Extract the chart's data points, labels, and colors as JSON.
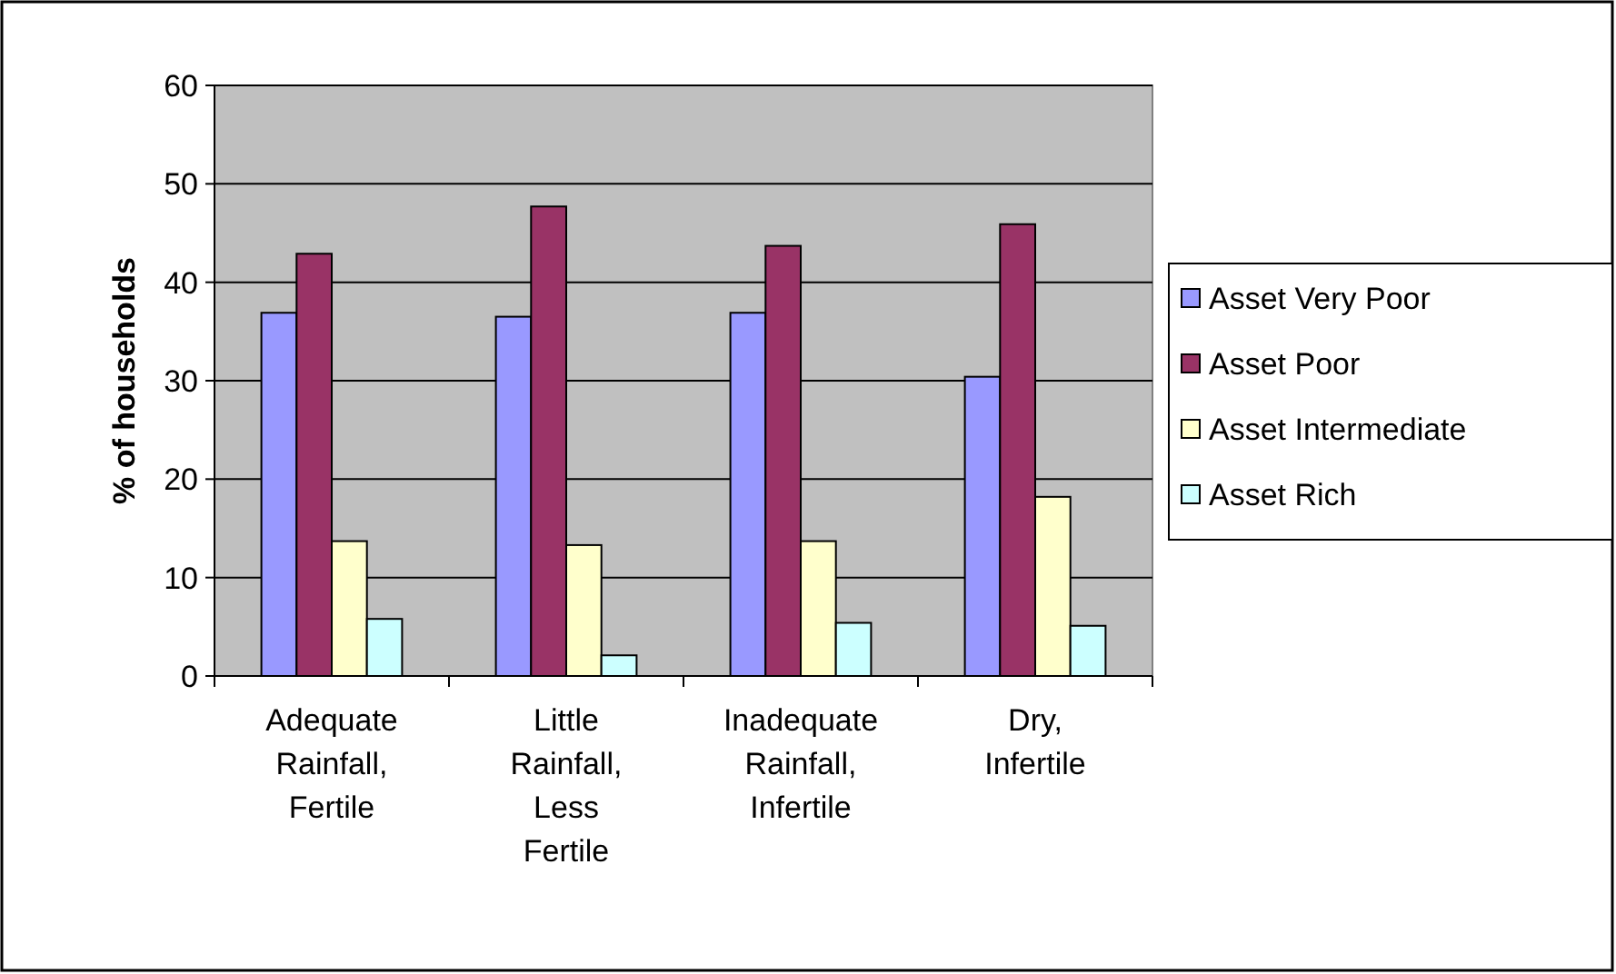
{
  "chart_data": {
    "type": "bar",
    "ylabel": "% of households",
    "categories": [
      "Adequate Rainfall, Fertile",
      "Little Rainfall, Less Fertile",
      "Inadequate Rainfall, Infertile",
      "Dry, Infertile"
    ],
    "series": [
      {
        "name": "Asset Very Poor",
        "color": "#9999ff",
        "values": [
          36.9,
          36.5,
          36.9,
          30.4
        ]
      },
      {
        "name": "Asset Poor",
        "color": "#993366",
        "values": [
          42.9,
          47.7,
          43.7,
          45.9
        ]
      },
      {
        "name": "Asset Intermediate",
        "color": "#ffffcc",
        "values": [
          13.7,
          13.3,
          13.7,
          18.2
        ]
      },
      {
        "name": "Asset Rich",
        "color": "#ccffff",
        "values": [
          5.8,
          2.1,
          5.4,
          5.1
        ]
      }
    ],
    "ylim": [
      0,
      60
    ],
    "yticks": [
      0,
      10,
      20,
      30,
      40,
      50,
      60
    ],
    "grid": "y",
    "legend": "right"
  }
}
